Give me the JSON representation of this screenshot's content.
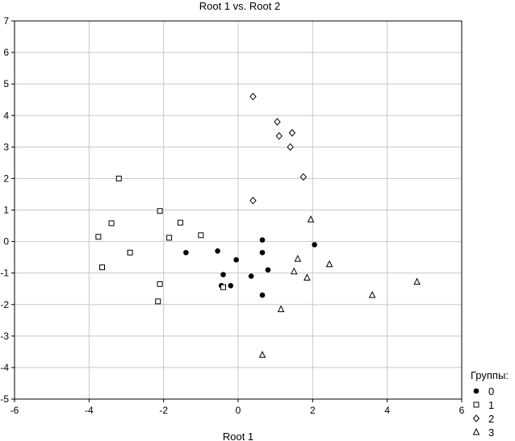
{
  "chart_data": {
    "type": "scatter",
    "title": "Root 1 vs. Root 2",
    "xlabel": "Root 1",
    "ylabel": "",
    "xlim": [
      -6,
      6
    ],
    "ylim": [
      -5,
      7
    ],
    "xticks": [
      -6,
      -4,
      -2,
      0,
      2,
      4,
      6
    ],
    "yticks": [
      -5,
      -4,
      -3,
      -2,
      -1,
      0,
      1,
      2,
      3,
      4,
      5,
      6,
      7
    ],
    "grid": true,
    "legend": {
      "title": "Группы:",
      "position": "bottom-right"
    },
    "series": [
      {
        "name": "0",
        "marker": "filled-circle",
        "points": [
          [
            -1.4,
            -0.35
          ],
          [
            -0.55,
            -0.3
          ],
          [
            -0.4,
            -1.05
          ],
          [
            -0.45,
            -1.4
          ],
          [
            -0.2,
            -1.4
          ],
          [
            -0.05,
            -0.58
          ],
          [
            0.35,
            -1.1
          ],
          [
            0.65,
            0.05
          ],
          [
            0.65,
            -0.35
          ],
          [
            0.8,
            -0.9
          ],
          [
            0.65,
            -1.7
          ],
          [
            2.05,
            -0.1
          ]
        ]
      },
      {
        "name": "1",
        "marker": "open-square",
        "points": [
          [
            -3.2,
            2.0
          ],
          [
            -3.4,
            0.58
          ],
          [
            -3.75,
            0.15
          ],
          [
            -3.65,
            -0.82
          ],
          [
            -2.9,
            -0.35
          ],
          [
            -2.1,
            0.97
          ],
          [
            -1.55,
            0.6
          ],
          [
            -1.85,
            0.12
          ],
          [
            -1.0,
            0.2
          ],
          [
            -2.1,
            -1.35
          ],
          [
            -2.15,
            -1.9
          ],
          [
            -0.4,
            -1.45
          ]
        ]
      },
      {
        "name": "2",
        "marker": "open-diamond",
        "points": [
          [
            0.4,
            4.6
          ],
          [
            1.05,
            3.8
          ],
          [
            1.45,
            3.45
          ],
          [
            1.1,
            3.35
          ],
          [
            1.4,
            3.0
          ],
          [
            1.75,
            2.05
          ],
          [
            0.4,
            1.3
          ]
        ]
      },
      {
        "name": "3",
        "marker": "open-triangle",
        "points": [
          [
            1.95,
            0.7
          ],
          [
            1.6,
            -0.55
          ],
          [
            1.5,
            -0.95
          ],
          [
            1.85,
            -1.15
          ],
          [
            2.45,
            -0.72
          ],
          [
            1.15,
            -2.15
          ],
          [
            0.65,
            -3.6
          ],
          [
            3.6,
            -1.7
          ],
          [
            4.8,
            -1.28
          ]
        ]
      }
    ]
  }
}
